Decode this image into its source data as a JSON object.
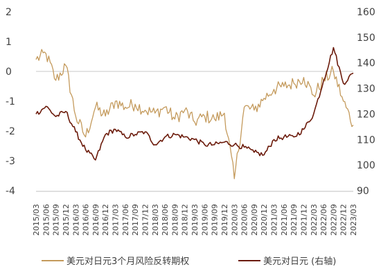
{
  "chart_data": {
    "type": "line",
    "x": [
      "2015/03",
      "2015/06",
      "2015/09",
      "2015/12",
      "2016/03",
      "2016/06",
      "2016/09",
      "2016/12",
      "2017/03",
      "2017/06",
      "2017/09",
      "2017/12",
      "2018/03",
      "2018/06",
      "2018/09",
      "2018/12",
      "2019/03",
      "2019/06",
      "2019/09",
      "2019/12",
      "2020/03",
      "2020/06",
      "2020/09",
      "2020/12",
      "2021/03",
      "2021/06",
      "2021/09",
      "2021/12",
      "2022/03",
      "2022/06",
      "2022/09",
      "2022/12",
      "2023/03"
    ],
    "left_axis": {
      "ylim": [
        -4,
        2
      ],
      "ticks": [
        "2",
        "1",
        "0",
        "-1",
        "-2",
        "-3",
        "-4"
      ]
    },
    "right_axis": {
      "ylim": [
        90,
        160
      ],
      "ticks": [
        "160",
        "150",
        "140",
        "130",
        "120",
        "110",
        "100",
        "90"
      ]
    },
    "zero_line": true,
    "grid": false,
    "legend_position": "bottom",
    "series": [
      {
        "name": "美元对日元3个月风险反转期权",
        "axis": "left",
        "color": "#c49a5c",
        "values": [
          0.4,
          0.6,
          -0.3,
          0.2,
          -1.5,
          -2.2,
          -1.2,
          -1.5,
          -1.0,
          -1.2,
          -1.1,
          -1.3,
          -1.4,
          -1.2,
          -1.6,
          -1.3,
          -1.7,
          -1.5,
          -1.6,
          -1.4,
          -3.6,
          -1.2,
          -1.3,
          -0.9,
          -0.6,
          -0.5,
          -0.4,
          -0.2,
          -0.8,
          -0.3,
          0.0,
          -1.0,
          -1.8
        ]
      },
      {
        "name": "美元对日元 (右轴)",
        "axis": "right",
        "color": "#6b1a0a",
        "values": [
          120,
          123,
          119,
          121,
          113,
          106,
          102,
          112,
          114,
          111,
          112,
          113,
          108,
          111,
          112,
          111,
          110,
          108,
          108,
          109,
          108,
          107,
          105,
          104,
          110,
          111,
          111,
          114,
          120,
          133,
          146,
          132,
          136
        ]
      }
    ]
  }
}
